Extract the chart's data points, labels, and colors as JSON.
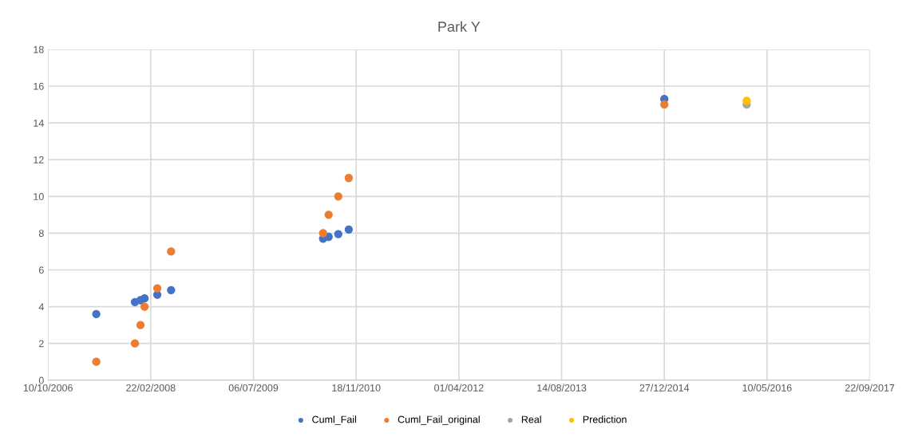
{
  "chart_data": {
    "type": "scatter",
    "title": "Park Y",
    "marker": "circle",
    "grid": true,
    "legend": "bottom",
    "xlim": [
      "2006-10-10",
      "2017-09-22"
    ],
    "ylim": [
      0,
      18
    ],
    "yticks": [
      0,
      2,
      4,
      6,
      8,
      10,
      12,
      14,
      16,
      18
    ],
    "xticks": [
      {
        "value": "2006-10-10",
        "label": "10/10/2006"
      },
      {
        "value": "2008-02-22",
        "label": "22/02/2008"
      },
      {
        "value": "2009-07-06",
        "label": "06/07/2009"
      },
      {
        "value": "2010-11-18",
        "label": "18/11/2010"
      },
      {
        "value": "2012-04-01",
        "label": "01/04/2012"
      },
      {
        "value": "2013-08-14",
        "label": "14/08/2013"
      },
      {
        "value": "2014-12-27",
        "label": "27/12/2014"
      },
      {
        "value": "2016-05-10",
        "label": "10/05/2016"
      },
      {
        "value": "2017-09-22",
        "label": "22/09/2017"
      }
    ],
    "series": [
      {
        "name": "Cuml_Fail",
        "color": "#4472c4",
        "x": [
          "2007-06-02",
          "2007-12-07",
          "2008-01-03",
          "2008-01-23",
          "2008-03-25",
          "2008-05-31",
          "2010-06-10",
          "2010-07-07",
          "2010-08-23",
          "2010-10-13",
          "2014-12-27"
        ],
        "values": [
          3.6,
          4.25,
          4.35,
          4.45,
          4.65,
          4.9,
          7.7,
          7.8,
          7.95,
          8.2,
          15.3
        ]
      },
      {
        "name": "Cuml_Fail_original",
        "color": "#ed7d31",
        "x": [
          "2007-06-02",
          "2007-12-07",
          "2008-01-03",
          "2008-01-23",
          "2008-03-25",
          "2008-05-31",
          "2010-06-10",
          "2010-07-07",
          "2010-08-23",
          "2010-10-13",
          "2014-12-27"
        ],
        "values": [
          1,
          2,
          3,
          4,
          5,
          7,
          8,
          9,
          10,
          11,
          15
        ]
      },
      {
        "name": "Real",
        "color": "#a5a5a5",
        "x": [
          "2016-02-01"
        ],
        "values": [
          15
        ]
      },
      {
        "name": "Prediction",
        "color": "#ffc000",
        "x": [
          "2016-02-01"
        ],
        "values": [
          15.2
        ]
      }
    ]
  }
}
